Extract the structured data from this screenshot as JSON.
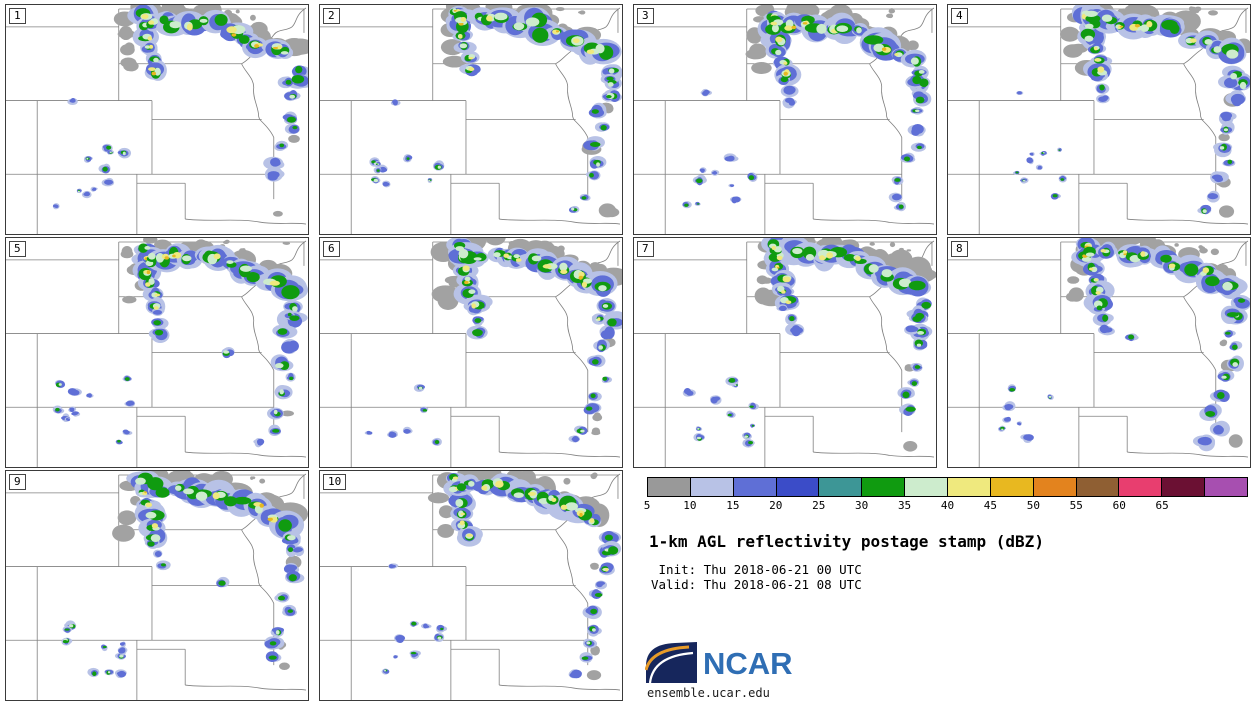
{
  "title": "1-km AGL reflectivity postage stamp (dBZ)",
  "times": {
    "init_line": " Init: Thu 2018-06-21 00 UTC",
    "valid_line": "Valid: Thu 2018-06-21 08 UTC"
  },
  "logo": {
    "text": "NCAR",
    "url": "ensemble.ucar.edu"
  },
  "colorbar": {
    "tick_labels": [
      "5",
      "10",
      "15",
      "20",
      "25",
      "30",
      "35",
      "40",
      "45",
      "50",
      "55",
      "60",
      "65"
    ],
    "colors": [
      "#999999",
      "#b8c2e6",
      "#5f6fd6",
      "#3b4cc8",
      "#3d9696",
      "#109b10",
      "#cdeccd",
      "#efe97e",
      "#e8b820",
      "#e3831e",
      "#8f5f33",
      "#e83e6f",
      "#6b1033",
      "#a74fb0"
    ]
  },
  "panels": [
    {
      "label": "1",
      "seed": 11
    },
    {
      "label": "2",
      "seed": 22
    },
    {
      "label": "3",
      "seed": 37
    },
    {
      "label": "4",
      "seed": 48
    },
    {
      "label": "5",
      "seed": 55
    },
    {
      "label": "6",
      "seed": 64
    },
    {
      "label": "7",
      "seed": 71
    },
    {
      "label": "8",
      "seed": 83
    },
    {
      "label": "9",
      "seed": 92
    },
    {
      "label": "10",
      "seed": 105
    }
  ],
  "chart_data": {
    "type": "heatmap",
    "title": "1-km AGL reflectivity postage stamp (dBZ)",
    "variable": "1-km AGL reflectivity",
    "units": "dBZ",
    "init": "Thu 2018-06-21 00 UTC",
    "valid": "Thu 2018-06-21 08 UTC",
    "members": [
      "1",
      "2",
      "3",
      "4",
      "5",
      "6",
      "7",
      "8",
      "9",
      "10"
    ],
    "colorbar_tick_values": [
      5,
      10,
      15,
      20,
      25,
      30,
      35,
      40,
      45,
      50,
      55,
      60,
      65
    ],
    "colorbar_colors": [
      "#999999",
      "#b8c2e6",
      "#5f6fd6",
      "#3b4cc8",
      "#3d9696",
      "#109b10",
      "#cdeccd",
      "#efe97e",
      "#e8b820",
      "#e3831e",
      "#8f5f33",
      "#e83e6f",
      "#6b1033",
      "#a74fb0"
    ],
    "legend_position": "lower-right quadrant",
    "layout": "4 columns x 3 rows of postage-stamp maps; members 1-10, legend/title/logo fill the last two grid slots",
    "pattern_description": "Every ensemble member shows a curved convective band from northeast Wyoming across southern South Dakota and northern Nebraska with embedded 35-45 dBZ cores, a broken arc of cells over eastern Nebraska and Kansas, and scattered weak echoes near the Colorado / New Mexico border."
  }
}
